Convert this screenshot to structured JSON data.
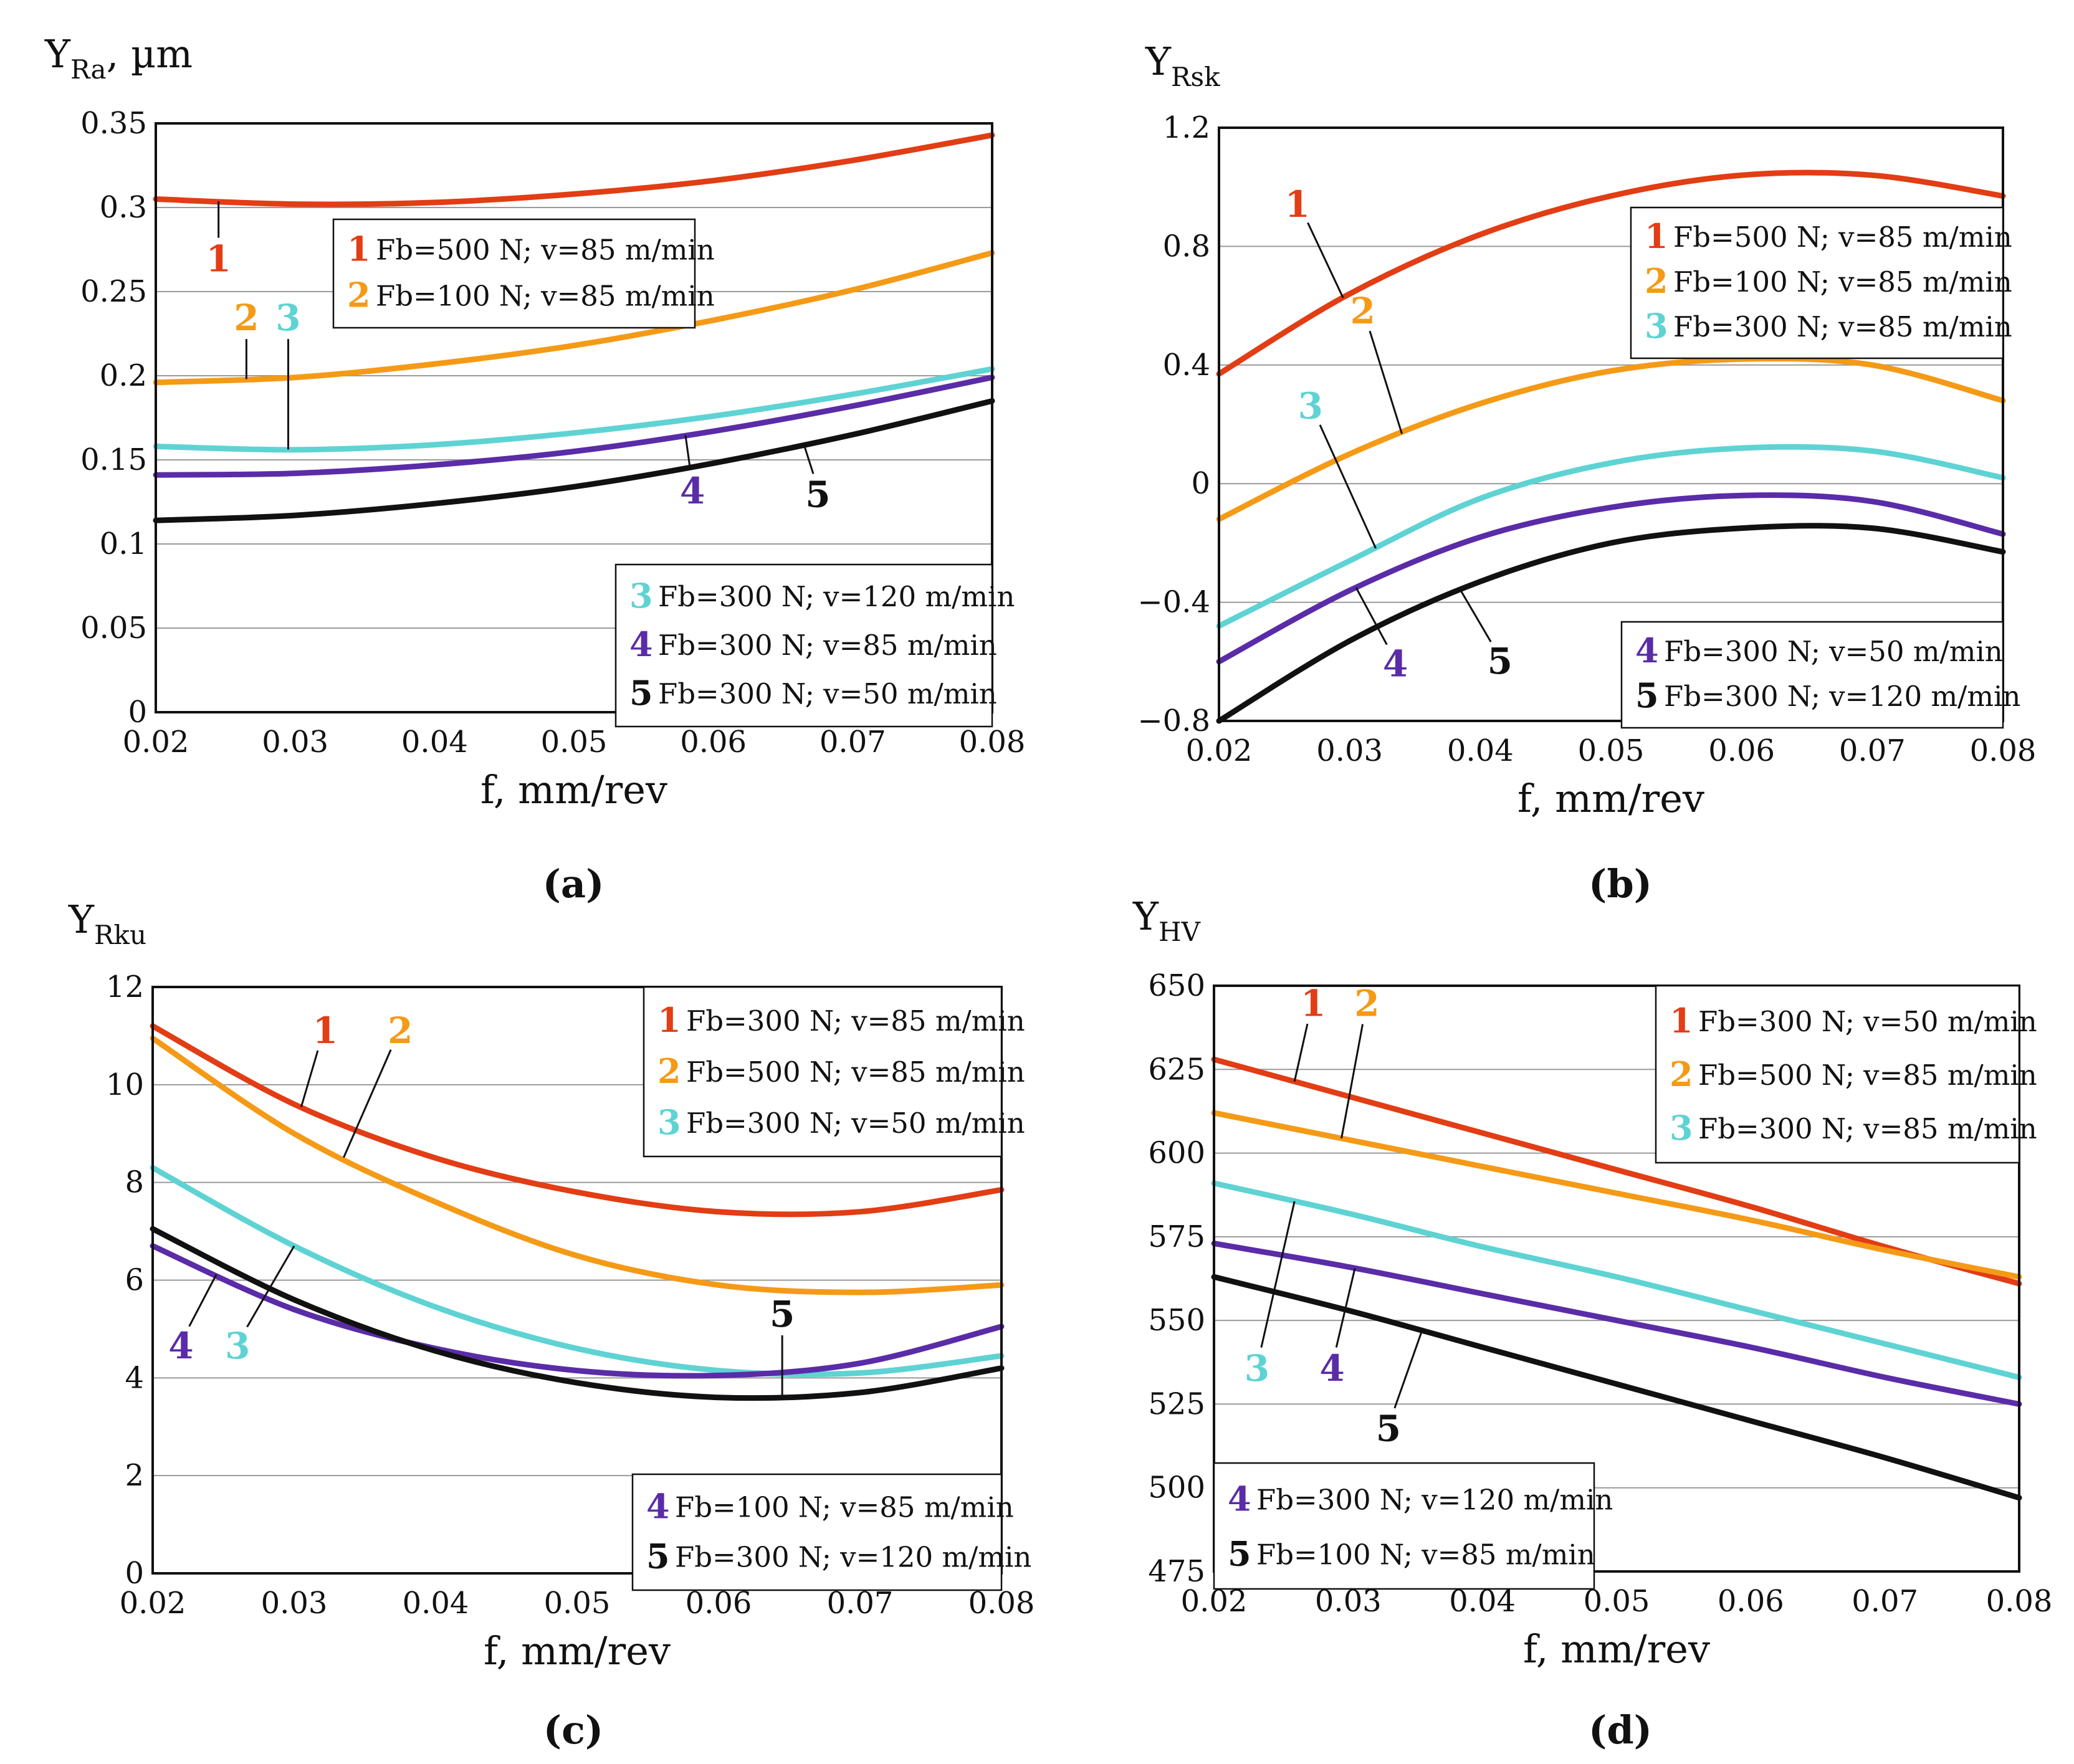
{
  "chart_data": [
    {
      "type": "line",
      "panel": "(a)",
      "ylabel": "Y",
      "ylabel_sub": "Ra",
      "ylabel_suffix": ", µm",
      "xlabel": "f, mm/rev",
      "xlim": [
        0.02,
        0.08
      ],
      "ylim": [
        0,
        0.35
      ],
      "xticks": [
        "0.02",
        "0.03",
        "0.04",
        "0.05",
        "0.06",
        "0.07",
        "0.08"
      ],
      "yticks": [
        "0",
        "0.05",
        "0.1",
        "0.15",
        "0.2",
        "0.25",
        "0.3",
        "0.35"
      ],
      "grid": true,
      "x": [
        0.02,
        0.03,
        0.04,
        0.05,
        0.06,
        0.07,
        0.08
      ],
      "series": [
        {
          "id": "1",
          "name": "Fb=500 N; v=85 m/min",
          "color": "#e23d14",
          "values": [
            0.305,
            0.302,
            0.303,
            0.308,
            0.316,
            0.328,
            0.343
          ]
        },
        {
          "id": "2",
          "name": "Fb=100 N; v=85 m/min",
          "color": "#f59a16",
          "values": [
            0.196,
            0.199,
            0.207,
            0.218,
            0.233,
            0.251,
            0.273
          ]
        },
        {
          "id": "3",
          "name": "Fb=300 N; v=120 m/min",
          "color": "#5fd3d3",
          "values": [
            0.158,
            0.156,
            0.159,
            0.166,
            0.176,
            0.189,
            0.204
          ]
        },
        {
          "id": "4",
          "name": "Fb=300 N; v=85 m/min",
          "color": "#5a2ca8",
          "values": [
            0.141,
            0.142,
            0.147,
            0.155,
            0.167,
            0.182,
            0.199
          ]
        },
        {
          "id": "5",
          "name": "Fb=300 N; v=50 m/min",
          "color": "#111111",
          "values": [
            0.114,
            0.117,
            0.124,
            0.134,
            0.148,
            0.165,
            0.185
          ]
        }
      ],
      "legend_groups": [
        {
          "position": "top-center",
          "items": [
            "1",
            "2"
          ]
        },
        {
          "position": "bottom-right",
          "items": [
            "3",
            "4",
            "5"
          ]
        }
      ],
      "annotations": [
        {
          "text": "1",
          "x": 0.0245,
          "y": 0.262,
          "color": "#e23d14"
        },
        {
          "text": "2",
          "x": 0.0265,
          "y": 0.227,
          "color": "#f59a16"
        },
        {
          "text": "3",
          "x": 0.0295,
          "y": 0.227,
          "color": "#5fd3d3"
        },
        {
          "text": "4",
          "x": 0.0585,
          "y": 0.124,
          "color": "#5a2ca8"
        },
        {
          "text": "5",
          "x": 0.0675,
          "y": 0.122,
          "color": "#111111"
        }
      ]
    },
    {
      "type": "line",
      "panel": "(b)",
      "ylabel": "Y",
      "ylabel_sub": "Rsk",
      "ylabel_suffix": "",
      "xlabel": "f, mm/rev",
      "xlim": [
        0.02,
        0.08
      ],
      "ylim": [
        -0.8,
        1.2
      ],
      "xticks": [
        "0.02",
        "0.03",
        "0.04",
        "0.05",
        "0.06",
        "0.07",
        "0.08"
      ],
      "yticks": [
        "−0.8",
        "−0.4",
        "0",
        "0.4",
        "0.8",
        "1.2"
      ],
      "grid": true,
      "x": [
        0.02,
        0.03,
        0.04,
        0.05,
        0.06,
        0.07,
        0.08
      ],
      "series": [
        {
          "id": "1",
          "name": "Fb=500 N; v=85 m/min",
          "color": "#e23d14",
          "values": [
            0.37,
            0.64,
            0.84,
            0.97,
            1.04,
            1.04,
            0.97
          ]
        },
        {
          "id": "2",
          "name": "Fb=100 N; v=85 m/min",
          "color": "#f59a16",
          "values": [
            -0.12,
            0.1,
            0.27,
            0.38,
            0.42,
            0.4,
            0.28
          ]
        },
        {
          "id": "3",
          "name": "Fb=300 N; v=85 m/min",
          "color": "#5fd3d3",
          "values": [
            -0.48,
            -0.26,
            -0.05,
            0.07,
            0.12,
            0.11,
            0.02
          ]
        },
        {
          "id": "4",
          "name": "Fb=300 N; v=50 m/min",
          "color": "#5a2ca8",
          "values": [
            -0.6,
            -0.36,
            -0.18,
            -0.08,
            -0.04,
            -0.06,
            -0.17
          ]
        },
        {
          "id": "5",
          "name": "Fb=300 N; v=120 m/min",
          "color": "#111111",
          "values": [
            -0.8,
            -0.53,
            -0.33,
            -0.2,
            -0.15,
            -0.15,
            -0.23
          ]
        }
      ],
      "legend_groups": [
        {
          "position": "top-right",
          "items": [
            "1",
            "2",
            "3"
          ]
        },
        {
          "position": "bottom-right",
          "items": [
            "4",
            "5"
          ]
        }
      ],
      "annotations": [
        {
          "text": "1",
          "x": 0.026,
          "y": 0.9,
          "color": "#e23d14"
        },
        {
          "text": "2",
          "x": 0.031,
          "y": 0.54,
          "color": "#f59a16"
        },
        {
          "text": "3",
          "x": 0.027,
          "y": 0.22,
          "color": "#5fd3d3"
        },
        {
          "text": "4",
          "x": 0.0335,
          "y": -0.65,
          "color": "#5a2ca8"
        },
        {
          "text": "5",
          "x": 0.0415,
          "y": -0.64,
          "color": "#111111"
        }
      ]
    },
    {
      "type": "line",
      "panel": "(c)",
      "ylabel": "Y",
      "ylabel_sub": "Rku",
      "ylabel_suffix": "",
      "xlabel": "f, mm/rev",
      "xlim": [
        0.02,
        0.08
      ],
      "ylim": [
        0,
        12
      ],
      "xticks": [
        "0.02",
        "0.03",
        "0.04",
        "0.05",
        "0.06",
        "0.07",
        "0.08"
      ],
      "yticks": [
        "0",
        "2",
        "4",
        "6",
        "8",
        "10",
        "12"
      ],
      "grid": true,
      "x": [
        0.02,
        0.03,
        0.04,
        0.05,
        0.06,
        0.07,
        0.08
      ],
      "series": [
        {
          "id": "1",
          "name": "Fb=300 N; v=85 m/min",
          "color": "#e23d14",
          "values": [
            11.2,
            9.6,
            8.5,
            7.8,
            7.4,
            7.4,
            7.85
          ]
        },
        {
          "id": "2",
          "name": "Fb=500 N; v=85 m/min",
          "color": "#f59a16",
          "values": [
            10.95,
            9.0,
            7.6,
            6.5,
            5.9,
            5.75,
            5.9
          ]
        },
        {
          "id": "3",
          "name": "Fb=300 N; v=50 m/min",
          "color": "#5fd3d3",
          "values": [
            8.3,
            6.7,
            5.45,
            4.6,
            4.15,
            4.1,
            4.45
          ]
        },
        {
          "id": "4",
          "name": "Fb=100 N; v=85 m/min",
          "color": "#5a2ca8",
          "values": [
            6.7,
            5.4,
            4.6,
            4.15,
            4.05,
            4.3,
            5.05
          ]
        },
        {
          "id": "5",
          "name": "Fb=300 N; v=120 m/min",
          "color": "#111111",
          "values": [
            7.05,
            5.6,
            4.55,
            3.9,
            3.6,
            3.7,
            4.2
          ]
        }
      ],
      "legend_groups": [
        {
          "position": "top-right",
          "items": [
            "1",
            "2",
            "3"
          ]
        },
        {
          "position": "bottom-right",
          "items": [
            "4",
            "5"
          ]
        }
      ],
      "annotations": [
        {
          "text": "1",
          "x": 0.0322,
          "y": 10.85,
          "color": "#e23d14"
        },
        {
          "text": "2",
          "x": 0.0375,
          "y": 10.85,
          "color": "#f59a16"
        },
        {
          "text": "3",
          "x": 0.026,
          "y": 4.4,
          "color": "#5fd3d3"
        },
        {
          "text": "4",
          "x": 0.022,
          "y": 4.4,
          "color": "#5a2ca8"
        },
        {
          "text": "5",
          "x": 0.0645,
          "y": 5.05,
          "color": "#111111"
        }
      ]
    },
    {
      "type": "line",
      "panel": "(d)",
      "ylabel": "Y",
      "ylabel_sub": "HV",
      "ylabel_suffix": "",
      "xlabel": "f, mm/rev",
      "xlim": [
        0.02,
        0.08
      ],
      "ylim": [
        475,
        650
      ],
      "xticks": [
        "0.02",
        "0.03",
        "0.04",
        "0.05",
        "0.06",
        "0.07",
        "0.08"
      ],
      "yticks": [
        "475",
        "500",
        "525",
        "550",
        "575",
        "600",
        "625",
        "650"
      ],
      "grid": true,
      "x": [
        0.02,
        0.03,
        0.04,
        0.05,
        0.06,
        0.07,
        0.08
      ],
      "series": [
        {
          "id": "1",
          "name": "Fb=300 N; v=50 m/min",
          "color": "#e23d14",
          "values": [
            628,
            617,
            606,
            595,
            584,
            572,
            561
          ]
        },
        {
          "id": "2",
          "name": "Fb=500 N; v=85 m/min",
          "color": "#f59a16",
          "values": [
            612,
            604,
            596,
            588,
            580,
            571,
            563
          ]
        },
        {
          "id": "3",
          "name": "Fb=300 N; v=85 m/min",
          "color": "#5fd3d3",
          "values": [
            591,
            582,
            572,
            563,
            553,
            543,
            533
          ]
        },
        {
          "id": "4",
          "name": "Fb=300 N; v=120 m/min",
          "color": "#5a2ca8",
          "values": [
            573,
            566,
            558,
            550,
            542,
            533,
            525
          ]
        },
        {
          "id": "5",
          "name": "Fb=100 N; v=85 m/min",
          "color": "#111111",
          "values": [
            563,
            553,
            542,
            531,
            520,
            509,
            497
          ]
        }
      ],
      "legend_groups": [
        {
          "position": "top-right",
          "items": [
            "1",
            "2",
            "3"
          ]
        },
        {
          "position": "bottom-left",
          "items": [
            "4",
            "5"
          ]
        }
      ],
      "annotations": [
        {
          "text": "1",
          "x": 0.0274,
          "y": 641,
          "color": "#e23d14"
        },
        {
          "text": "2",
          "x": 0.0314,
          "y": 641,
          "color": "#f59a16"
        },
        {
          "text": "3",
          "x": 0.0232,
          "y": 532,
          "color": "#5fd3d3"
        },
        {
          "text": "4",
          "x": 0.0288,
          "y": 532,
          "color": "#5a2ca8"
        },
        {
          "text": "5",
          "x": 0.033,
          "y": 514,
          "color": "#111111"
        }
      ]
    }
  ]
}
